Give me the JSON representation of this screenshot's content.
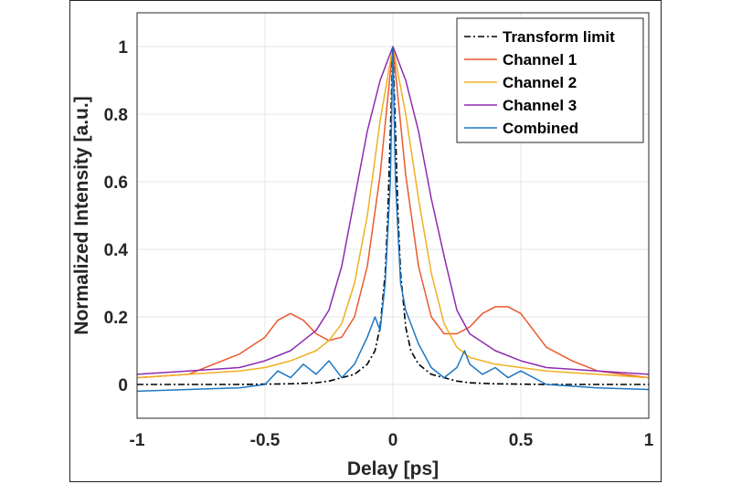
{
  "chart_data": {
    "type": "line",
    "title": "",
    "xlabel": "Delay [ps]",
    "ylabel": "Normalized Intensity [a.u.]",
    "xlim": [
      -1,
      1
    ],
    "ylim": [
      -0.1,
      1.1
    ],
    "grid": true,
    "legend_position": "top-right",
    "x_ticks": [
      "-1",
      "-0.5",
      "0",
      "0.5",
      "1"
    ],
    "y_ticks": [
      "0",
      "0.2",
      "0.4",
      "0.6",
      "0.8",
      "1"
    ],
    "series": [
      {
        "name": "Transform limit",
        "style": "dash-dot",
        "color": "#000000",
        "x": [
          -1,
          -0.8,
          -0.6,
          -0.4,
          -0.3,
          -0.25,
          -0.2,
          -0.15,
          -0.1,
          -0.07,
          -0.05,
          -0.03,
          -0.02,
          -0.01,
          0,
          0.01,
          0.02,
          0.03,
          0.05,
          0.07,
          0.1,
          0.15,
          0.2,
          0.25,
          0.3,
          0.4,
          0.6,
          0.8,
          1
        ],
        "y": [
          0,
          0,
          0,
          0.002,
          0.005,
          0.01,
          0.02,
          0.03,
          0.06,
          0.1,
          0.17,
          0.33,
          0.5,
          0.75,
          1,
          0.75,
          0.5,
          0.33,
          0.17,
          0.1,
          0.06,
          0.03,
          0.02,
          0.01,
          0.005,
          0.002,
          0,
          0,
          0
        ]
      },
      {
        "name": "Channel 1",
        "style": "solid",
        "color": "#ea5a2e",
        "x": [
          -1,
          -0.8,
          -0.7,
          -0.6,
          -0.5,
          -0.45,
          -0.4,
          -0.35,
          -0.3,
          -0.25,
          -0.2,
          -0.15,
          -0.1,
          -0.05,
          0,
          0.05,
          0.1,
          0.15,
          0.2,
          0.25,
          0.3,
          0.35,
          0.4,
          0.45,
          0.5,
          0.55,
          0.6,
          0.7,
          0.8,
          1
        ],
        "y": [
          0.02,
          0.03,
          0.06,
          0.09,
          0.14,
          0.19,
          0.21,
          0.19,
          0.15,
          0.13,
          0.14,
          0.2,
          0.35,
          0.62,
          1,
          0.62,
          0.35,
          0.2,
          0.15,
          0.15,
          0.17,
          0.21,
          0.23,
          0.23,
          0.21,
          0.16,
          0.11,
          0.07,
          0.04,
          0.02
        ]
      },
      {
        "name": "Channel 2",
        "style": "solid",
        "color": "#f0b020",
        "x": [
          -1,
          -0.8,
          -0.6,
          -0.5,
          -0.4,
          -0.3,
          -0.25,
          -0.2,
          -0.15,
          -0.1,
          -0.05,
          0,
          0.05,
          0.1,
          0.15,
          0.2,
          0.25,
          0.3,
          0.4,
          0.5,
          0.6,
          0.8,
          1
        ],
        "y": [
          0.02,
          0.03,
          0.04,
          0.05,
          0.07,
          0.1,
          0.13,
          0.18,
          0.3,
          0.5,
          0.78,
          1,
          0.8,
          0.55,
          0.33,
          0.18,
          0.11,
          0.08,
          0.06,
          0.05,
          0.04,
          0.03,
          0.02
        ]
      },
      {
        "name": "Channel 3",
        "style": "solid",
        "color": "#8e2bb0",
        "x": [
          -1,
          -0.8,
          -0.6,
          -0.5,
          -0.4,
          -0.3,
          -0.25,
          -0.2,
          -0.15,
          -0.1,
          -0.05,
          0,
          0.05,
          0.1,
          0.15,
          0.2,
          0.25,
          0.3,
          0.4,
          0.5,
          0.6,
          0.8,
          1
        ],
        "y": [
          0.03,
          0.04,
          0.05,
          0.07,
          0.1,
          0.16,
          0.22,
          0.35,
          0.55,
          0.75,
          0.9,
          1,
          0.9,
          0.75,
          0.55,
          0.38,
          0.22,
          0.15,
          0.1,
          0.07,
          0.05,
          0.04,
          0.03
        ]
      },
      {
        "name": "Combined",
        "style": "solid",
        "color": "#1f77c4",
        "x": [
          -1,
          -0.8,
          -0.6,
          -0.5,
          -0.45,
          -0.4,
          -0.35,
          -0.3,
          -0.25,
          -0.2,
          -0.15,
          -0.1,
          -0.07,
          -0.05,
          -0.03,
          -0.01,
          0,
          0.01,
          0.03,
          0.05,
          0.07,
          0.1,
          0.15,
          0.2,
          0.25,
          0.28,
          0.3,
          0.35,
          0.4,
          0.45,
          0.5,
          0.6,
          0.8,
          1
        ],
        "y": [
          -0.02,
          -0.015,
          -0.01,
          0.0,
          0.04,
          0.02,
          0.06,
          0.03,
          0.07,
          0.02,
          0.06,
          0.14,
          0.2,
          0.16,
          0.3,
          0.6,
          1,
          0.6,
          0.3,
          0.22,
          0.18,
          0.12,
          0.05,
          0.02,
          0.05,
          0.1,
          0.06,
          0.03,
          0.05,
          0.02,
          0.04,
          0.0,
          -0.01,
          -0.015
        ]
      }
    ]
  }
}
